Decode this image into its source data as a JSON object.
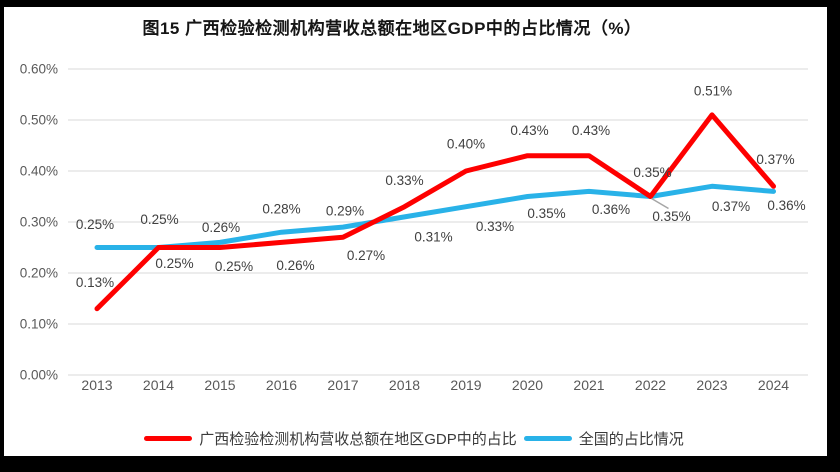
{
  "chart_data": {
    "type": "line",
    "title": "图15 广西检验检测机构营收总额在地区GDP中的占比情况（%）",
    "categories": [
      "2013",
      "2014",
      "2015",
      "2016",
      "2017",
      "2018",
      "2019",
      "2020",
      "2021",
      "2022",
      "2023",
      "2024"
    ],
    "series": [
      {
        "name": "广西检验检测机构营收总额在地区GDP中的占比",
        "color": "#FE0000",
        "values": [
          0.13,
          0.25,
          0.25,
          0.26,
          0.27,
          0.33,
          0.4,
          0.43,
          0.43,
          0.35,
          0.51,
          0.37
        ],
        "labels": [
          "0.13%",
          "0.25%",
          "0.25%",
          "0.26%",
          "0.27%",
          "0.33%",
          "0.40%",
          "0.43%",
          "0.43%",
          "0.35%",
          "0.51%",
          "0.37%"
        ]
      },
      {
        "name": "全国的占比情况",
        "color": "#29B2E8",
        "values": [
          0.25,
          0.25,
          0.26,
          0.28,
          0.29,
          0.31,
          0.33,
          0.35,
          0.36,
          0.35,
          0.37,
          0.36
        ],
        "labels": [
          "0.25%",
          "0.25%",
          "0.26%",
          "0.28%",
          "0.29%",
          "0.31%",
          "0.33%",
          "0.35%",
          "0.36%",
          "0.35%",
          "0.37%",
          "0.36%"
        ]
      }
    ],
    "y_ticks": [
      "0.00%",
      "0.10%",
      "0.20%",
      "0.30%",
      "0.40%",
      "0.50%",
      "0.60%"
    ],
    "ylim": [
      0,
      0.6
    ],
    "grid": true,
    "legend_position": "bottom",
    "annotation": {
      "callout_series": 1,
      "callout_index": 9
    },
    "colors": {
      "grid": "#D9D9D9",
      "axis_text": "#595959",
      "label_text": "#404040",
      "leader_line": "#A6A6A6",
      "frame": "#000000"
    }
  }
}
